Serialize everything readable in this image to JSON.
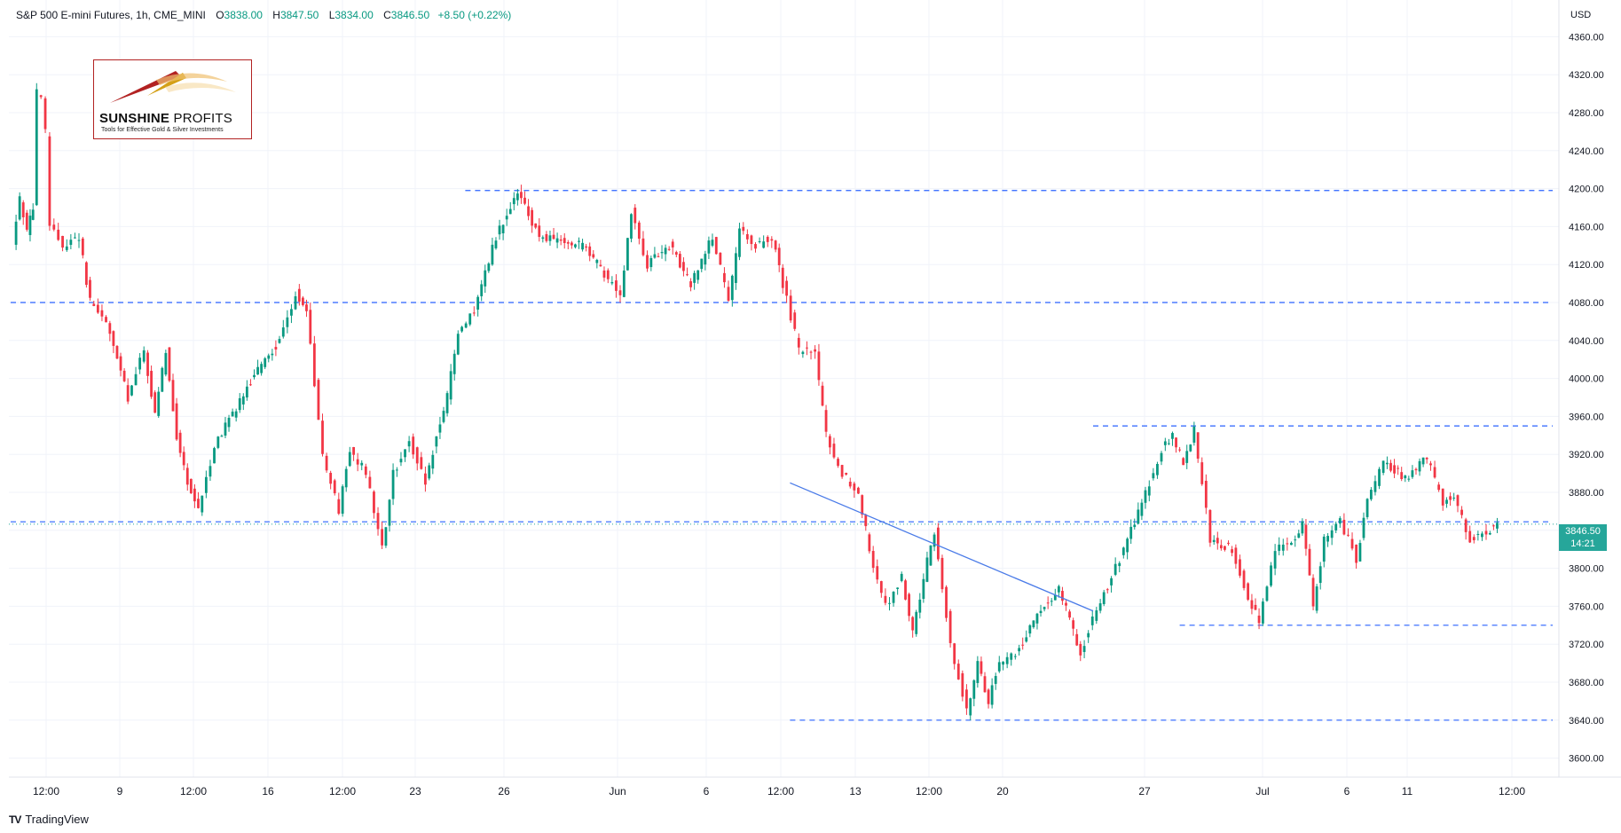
{
  "legend": {
    "symbol": "S&P 500 E-mini Futures, 1h, CME_MINI",
    "open_label": "O",
    "open": "3838.00",
    "high_label": "H",
    "high": "3847.50",
    "low_label": "L",
    "low": "3834.00",
    "close_label": "C",
    "close": "3846.50",
    "change": "+8.50 (+0.22%)"
  },
  "price_axis": {
    "currency": "USD",
    "labels": [
      "4360.00",
      "4320.00",
      "4280.00",
      "4240.00",
      "4200.00",
      "4160.00",
      "4120.00",
      "4080.00",
      "4040.00",
      "4000.00",
      "3960.00",
      "3920.00",
      "3880.00",
      "3840.00",
      "3800.00",
      "3760.00",
      "3720.00",
      "3680.00",
      "3640.00",
      "3600.00"
    ]
  },
  "last_price": {
    "price": "3846.50",
    "countdown": "14:21"
  },
  "footer": {
    "brand": "TradingView"
  },
  "watermark": {
    "name_bold": "SUNSHINE",
    "name_light": " PROFITS",
    "tagline": "Tools for Effective Gold & Silver Investments"
  },
  "colors": {
    "up": "#089981",
    "down": "#f23645",
    "level_line": "#2962ff",
    "trendline": "#4a7be8",
    "price_tag": "#26a69a"
  },
  "chart_data": {
    "type": "candlestick",
    "title": "S&P 500 E-mini Futures, 1h, CME_MINI",
    "ylabel": "USD",
    "ylim": [
      3580,
      4380
    ],
    "x_tick_labels": [
      "12:00",
      "9",
      "12:00",
      "16",
      "12:00",
      "23",
      "26",
      "Jun",
      "6",
      "12:00",
      "13",
      "12:00",
      "20",
      "27",
      "Jul",
      "6",
      "11",
      "12:00"
    ],
    "horizontal_levels": [
      {
        "price": 4198,
        "from": "May 26",
        "to": "Jul 13"
      },
      {
        "price": 4080,
        "from": "May 5",
        "to": "Jul 13"
      },
      {
        "price": 3950,
        "from": "Jun 24",
        "to": "Jul 13"
      },
      {
        "price": 3849,
        "from": "May 5",
        "to": "Jul 13"
      },
      {
        "price": 3740,
        "from": "Jun 28",
        "to": "Jul 13"
      },
      {
        "price": 3640,
        "from": "Jun 10",
        "to": "Jul 13"
      }
    ],
    "trendline": {
      "from": {
        "date": "Jun 10",
        "price": 3890
      },
      "to": {
        "date": "Jun 24",
        "price": 3755
      }
    },
    "price_path": [
      {
        "date": "May 5",
        "price": 4140
      },
      {
        "date": "May 5",
        "price": 4190
      },
      {
        "date": "May 5",
        "price": 4155
      },
      {
        "date": "May 6",
        "price": 4180
      },
      {
        "date": "May 6",
        "price": 4300
      },
      {
        "date": "May 6",
        "price": 4295
      },
      {
        "date": "May 6",
        "price": 4260
      },
      {
        "date": "May 6",
        "price": 4160
      },
      {
        "date": "May 7",
        "price": 4140
      },
      {
        "date": "May 8",
        "price": 4150
      },
      {
        "date": "May 8",
        "price": 4080
      },
      {
        "date": "May 9",
        "price": 4060
      },
      {
        "date": "May 10",
        "price": 3980
      },
      {
        "date": "May 11",
        "price": 4030
      },
      {
        "date": "May 11",
        "price": 3960
      },
      {
        "date": "May 12",
        "price": 4030
      },
      {
        "date": "May 12",
        "price": 3940
      },
      {
        "date": "May 13",
        "price": 3890
      },
      {
        "date": "May 13",
        "price": 3860
      },
      {
        "date": "May 14",
        "price": 3930
      },
      {
        "date": "May 16",
        "price": 4010
      },
      {
        "date": "May 17",
        "price": 4040
      },
      {
        "date": "May 18",
        "price": 4090
      },
      {
        "date": "May 18",
        "price": 4070
      },
      {
        "date": "May 19",
        "price": 3920
      },
      {
        "date": "May 20",
        "price": 3860
      },
      {
        "date": "May 20",
        "price": 3925
      },
      {
        "date": "May 21",
        "price": 3900
      },
      {
        "date": "May 22",
        "price": 3820
      },
      {
        "date": "May 22",
        "price": 3900
      },
      {
        "date": "May 23",
        "price": 3935
      },
      {
        "date": "May 24",
        "price": 3890
      },
      {
        "date": "May 24",
        "price": 3940
      },
      {
        "date": "May 25",
        "price": 3980
      },
      {
        "date": "May 25",
        "price": 4050
      },
      {
        "date": "May 26",
        "price": 4070
      },
      {
        "date": "May 27",
        "price": 4150
      },
      {
        "date": "May 28",
        "price": 4195
      },
      {
        "date": "May 29",
        "price": 4150
      },
      {
        "date": "May 31",
        "price": 4140
      },
      {
        "date": "Jun 1",
        "price": 4110
      },
      {
        "date": "Jun 2",
        "price": 4090
      },
      {
        "date": "Jun 2",
        "price": 4175
      },
      {
        "date": "Jun 3",
        "price": 4120
      },
      {
        "date": "Jun 4",
        "price": 4140
      },
      {
        "date": "Jun 5",
        "price": 4100
      },
      {
        "date": "Jun 6",
        "price": 4150
      },
      {
        "date": "Jun 7",
        "price": 4080
      },
      {
        "date": "Jun 7",
        "price": 4155
      },
      {
        "date": "Jun 8",
        "price": 4140
      },
      {
        "date": "Jun 9",
        "price": 4150
      },
      {
        "date": "Jun 9",
        "price": 4100
      },
      {
        "date": "Jun 10",
        "price": 4030
      },
      {
        "date": "Jun 11",
        "price": 4025
      },
      {
        "date": "Jun 11",
        "price": 3940
      },
      {
        "date": "Jun 12",
        "price": 3900
      },
      {
        "date": "Jun 13",
        "price": 3880
      },
      {
        "date": "Jun 13",
        "price": 3820
      },
      {
        "date": "Jun 14",
        "price": 3760
      },
      {
        "date": "Jun 15",
        "price": 3790
      },
      {
        "date": "Jun 15",
        "price": 3730
      },
      {
        "date": "Jun 16",
        "price": 3790
      },
      {
        "date": "Jun 16",
        "price": 3840
      },
      {
        "date": "Jun 17",
        "price": 3720
      },
      {
        "date": "Jun 18",
        "price": 3650
      },
      {
        "date": "Jun 18",
        "price": 3700
      },
      {
        "date": "Jun 19",
        "price": 3660
      },
      {
        "date": "Jun 19",
        "price": 3700
      },
      {
        "date": "Jun 20",
        "price": 3710
      },
      {
        "date": "Jun 21",
        "price": 3750
      },
      {
        "date": "Jun 22",
        "price": 3780
      },
      {
        "date": "Jun 23",
        "price": 3710
      },
      {
        "date": "Jun 24",
        "price": 3760
      },
      {
        "date": "Jun 24",
        "price": 3780
      },
      {
        "date": "Jun 25",
        "price": 3820
      },
      {
        "date": "Jun 26",
        "price": 3880
      },
      {
        "date": "Jun 27",
        "price": 3925
      },
      {
        "date": "Jun 27",
        "price": 3940
      },
      {
        "date": "Jun 28",
        "price": 3910
      },
      {
        "date": "Jun 28",
        "price": 3945
      },
      {
        "date": "Jun 29",
        "price": 3830
      },
      {
        "date": "Jun 30",
        "price": 3820
      },
      {
        "date": "Jul 1",
        "price": 3770
      },
      {
        "date": "Jul 1",
        "price": 3745
      },
      {
        "date": "Jul 2",
        "price": 3820
      },
      {
        "date": "Jul 3",
        "price": 3825
      },
      {
        "date": "Jul 3",
        "price": 3850
      },
      {
        "date": "Jul 4",
        "price": 3760
      },
      {
        "date": "Jul 4",
        "price": 3830
      },
      {
        "date": "Jul 5",
        "price": 3850
      },
      {
        "date": "Jul 6",
        "price": 3810
      },
      {
        "date": "Jul 6",
        "price": 3870
      },
      {
        "date": "Jul 7",
        "price": 3910
      },
      {
        "date": "Jul 8",
        "price": 3895
      },
      {
        "date": "Jul 9",
        "price": 3915
      },
      {
        "date": "Jul 10",
        "price": 3870
      },
      {
        "date": "Jul 10",
        "price": 3875
      },
      {
        "date": "Jul 11",
        "price": 3830
      },
      {
        "date": "Jul 12",
        "price": 3838
      },
      {
        "date": "Jul 12",
        "price": 3846.5
      }
    ]
  }
}
